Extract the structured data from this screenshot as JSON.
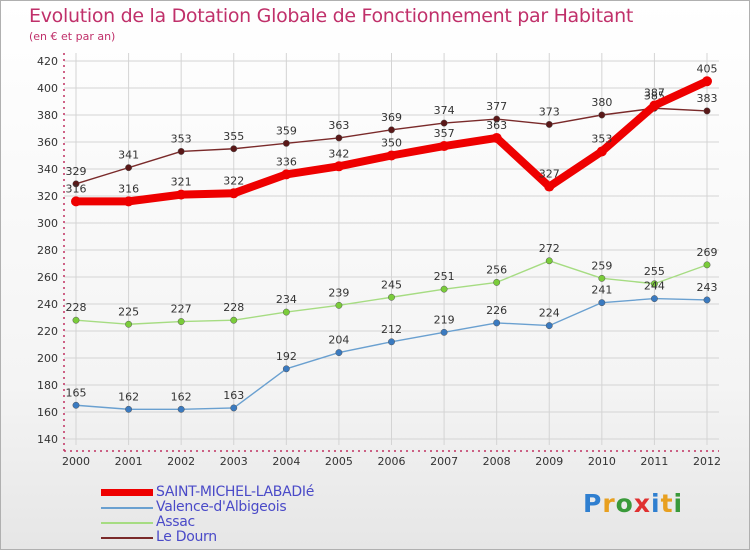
{
  "header": {
    "title": "Evolution de la Dotation Globale de Fonctionnement par Habitant",
    "subtitle": "(en € et par an)"
  },
  "logo": {
    "text": "Proxiti",
    "letters": [
      "P",
      "r",
      "o",
      "x",
      "i",
      "t",
      "i"
    ],
    "colors": [
      "#2f7fd0",
      "#e8a020",
      "#3a9a3a",
      "#e03030",
      "#2f7fd0",
      "#e8a020",
      "#3a9a3a"
    ]
  },
  "chart_data": {
    "type": "line",
    "title": "Evolution de la Dotation Globale de Fonctionnement par Habitant",
    "subtitle": "(en € et par an)",
    "xlabel": "",
    "ylabel": "",
    "ylim": [
      140,
      420
    ],
    "yticks": [
      140,
      160,
      180,
      200,
      220,
      240,
      260,
      280,
      300,
      320,
      340,
      360,
      380,
      400,
      420
    ],
    "grid": true,
    "legend_position": "bottom-left",
    "categories": [
      "2000",
      "2001",
      "2002",
      "2003",
      "2004",
      "2005",
      "2006",
      "2007",
      "2008",
      "2009",
      "2010",
      "2011",
      "2012"
    ],
    "series": [
      {
        "name": "Le Dourn",
        "color": "#7a2a2a",
        "marker": "#5a1818",
        "weight": "thin",
        "values": [
          329,
          341,
          353,
          355,
          359,
          363,
          369,
          374,
          377,
          373,
          380,
          385,
          383
        ]
      },
      {
        "name": "Assac",
        "color": "#a6dc82",
        "marker": "#7acc3a",
        "weight": "thin",
        "values": [
          228,
          225,
          227,
          228,
          234,
          239,
          245,
          251,
          256,
          272,
          259,
          255,
          269
        ]
      },
      {
        "name": "Valence-d'Albigeois",
        "color": "#6aa0d0",
        "marker": "#3a7ac0",
        "weight": "thin",
        "values": [
          165,
          162,
          162,
          163,
          192,
          204,
          212,
          219,
          226,
          224,
          241,
          244,
          243
        ]
      },
      {
        "name": "SAINT-MICHEL-LABADIé",
        "color": "#ee0000",
        "marker": "#ee0000",
        "weight": "thick",
        "values": [
          316,
          316,
          321,
          322,
          336,
          342,
          350,
          357,
          363,
          327,
          353,
          387,
          405
        ]
      }
    ],
    "legend": [
      "SAINT-MICHEL-LABADIé",
      "Valence-d'Albigeois",
      "Assac",
      "Le Dourn"
    ]
  }
}
